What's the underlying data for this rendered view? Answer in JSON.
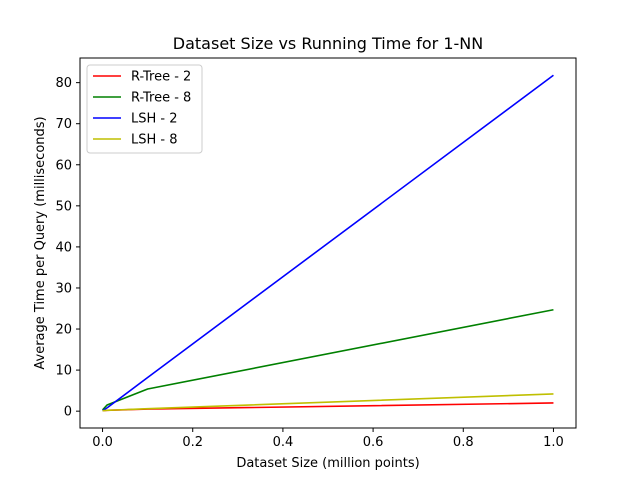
{
  "chart_data": {
    "type": "line",
    "title": "Dataset Size vs Running Time for 1-NN",
    "xlabel": "Dataset Size (million points)",
    "ylabel": "Average Time per Query (milliseconds)",
    "xlim": [
      -0.05,
      1.05
    ],
    "ylim": [
      -4.1,
      86.0
    ],
    "xticks": [
      0.0,
      0.2,
      0.4,
      0.6,
      0.8,
      1.0
    ],
    "xtick_labels": [
      "0.0",
      "0.2",
      "0.4",
      "0.6",
      "0.8",
      "1.0"
    ],
    "yticks": [
      0,
      10,
      20,
      30,
      40,
      50,
      60,
      70,
      80
    ],
    "ytick_labels": [
      "0",
      "10",
      "20",
      "30",
      "40",
      "50",
      "60",
      "70",
      "80"
    ],
    "grid": false,
    "legend_position": "top-left",
    "series": [
      {
        "name": "R-Tree - 2",
        "color": "#ff0000",
        "x": [
          0.0,
          0.01,
          0.1,
          1.0
        ],
        "y": [
          0.1,
          0.2,
          0.5,
          2.0
        ]
      },
      {
        "name": "R-Tree - 8",
        "color": "#008000",
        "x": [
          0.0,
          0.01,
          0.1,
          1.0
        ],
        "y": [
          0.3,
          1.5,
          5.4,
          24.7
        ]
      },
      {
        "name": "LSH - 2",
        "color": "#0000ff",
        "x": [
          0.0,
          0.01,
          0.1,
          1.0
        ],
        "y": [
          0.1,
          0.8,
          8.2,
          81.8
        ]
      },
      {
        "name": "LSH - 8",
        "color": "#bfbf00",
        "x": [
          0.0,
          0.01,
          0.1,
          1.0
        ],
        "y": [
          0.1,
          0.2,
          0.6,
          4.2
        ]
      }
    ]
  }
}
